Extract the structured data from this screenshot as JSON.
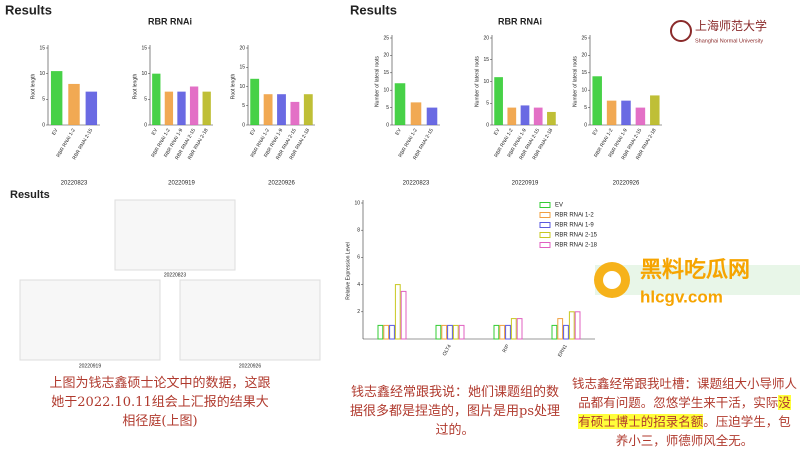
{
  "left_header": {
    "title": "Results",
    "subtitle": "RBR  RNAi"
  },
  "right_header": {
    "title": "Results",
    "subtitle": "RBR  RNAi"
  },
  "logo": {
    "name_cn": "上海师范大学",
    "name_en": "Shanghai Normal University"
  },
  "bottom_left": {
    "title": "Results",
    "dates": [
      "20220823",
      "20220919",
      "20220926"
    ]
  },
  "watermark": {
    "name": "黑料吃瓜网",
    "url": "hlcgv.com"
  },
  "captions": {
    "left": "上图为钱志鑫硕士论文中的数据，这跟她于2022.10.11组会上汇报的结果大相径庭(上图)",
    "middle": "钱志鑫经常跟我说：她们课题组的数据很多都是捏造的，图片是用ps处理过的。",
    "right_parts": [
      "钱志鑫经常跟我吐槽：课题组大小导师人品都有问题。忽悠学生来干活，实际",
      "没有硕士博士的招录名额",
      "。压迫学生，包养小三，师德师风全无。"
    ]
  },
  "chart_data": [
    {
      "type": "bar",
      "y_label": "Root  length",
      "x_title": "20220823",
      "categories": [
        "EV",
        "RBR  RNAi  1-2",
        "RBR  RNAi  2-15"
      ],
      "values": [
        10.5,
        8,
        6.5
      ],
      "colors": [
        "#33cc33",
        "#f0a040",
        "#5a5ae0"
      ],
      "ylim": [
        0,
        15
      ],
      "yticks": [
        0,
        5,
        10,
        15
      ]
    },
    {
      "type": "bar",
      "y_label": "Root  length",
      "x_title": "20220919",
      "categories": [
        "EV",
        "RBR  RNAi  1-2",
        "RBR  RNAi  1-9",
        "RBR  RNAi  2-15",
        "RBR  RNAi  2-18"
      ],
      "values": [
        10,
        6.5,
        6.5,
        7.5,
        6.5
      ],
      "colors": [
        "#33cc33",
        "#f0a040",
        "#5a5ae0",
        "#e060c0",
        "#b8b820"
      ],
      "ylim": [
        0,
        15
      ],
      "yticks": [
        0,
        5,
        10,
        15
      ]
    },
    {
      "type": "bar",
      "y_label": "Root  length",
      "x_title": "20220926",
      "categories": [
        "EV",
        "RBR  RNAi  1-2",
        "RBR  RNAi  1-9",
        "RBR  RNAi  2-15",
        "RBR  RNAi  2-18"
      ],
      "values": [
        12,
        8,
        8,
        6,
        8
      ],
      "colors": [
        "#33cc33",
        "#f0a040",
        "#5a5ae0",
        "#e060c0",
        "#b8b820"
      ],
      "ylim": [
        0,
        20
      ],
      "yticks": [
        0,
        5,
        10,
        15,
        20
      ]
    },
    {
      "type": "bar",
      "y_label": "Number of lateral roots",
      "x_title": "20220823",
      "categories": [
        "EV",
        "RBR  RNAi  1-2",
        "RBR  RNAi  2-15"
      ],
      "values": [
        12,
        6.5,
        5
      ],
      "colors": [
        "#33cc33",
        "#f0a040",
        "#5a5ae0"
      ],
      "ylim": [
        0,
        25
      ],
      "yticks": [
        0,
        5,
        10,
        15,
        20,
        25
      ]
    },
    {
      "type": "bar",
      "y_label": "Number of lateral roots",
      "x_title": "20220919",
      "categories": [
        "EV",
        "RBR  RNAi  1-2",
        "RBR  RNAi  1-9",
        "RBR  RNAi  2-15",
        "RBR  RNAi  2-18"
      ],
      "values": [
        11,
        4,
        4.5,
        4,
        3
      ],
      "colors": [
        "#33cc33",
        "#f0a040",
        "#5a5ae0",
        "#e060c0",
        "#b8b820"
      ],
      "ylim": [
        0,
        20
      ],
      "yticks": [
        0,
        5,
        10,
        15,
        20
      ]
    },
    {
      "type": "bar",
      "y_label": "Number of lateral roots",
      "x_title": "20220926",
      "categories": [
        "EV",
        "RBR  RNAi  1-2",
        "RBR  RNAi  1-9",
        "RBR  RNAi  2-15",
        "RBR  RNAi  2-18"
      ],
      "values": [
        14,
        7,
        7,
        5,
        8.5
      ],
      "colors": [
        "#33cc33",
        "#f0a040",
        "#5a5ae0",
        "#e060c0",
        "#b8b820"
      ],
      "ylim": [
        0,
        25
      ],
      "yticks": [
        0,
        5,
        10,
        15,
        20,
        25
      ]
    },
    {
      "type": "grouped_bar",
      "y_label": "Relative Expression Level",
      "categories": [
        null,
        "OLT4",
        "RIP",
        "ERN1"
      ],
      "ylim": [
        0,
        10
      ],
      "yticks": [
        2,
        4,
        6,
        8,
        10
      ],
      "series": [
        {
          "name": "EV",
          "color": "#33cc33",
          "values": [
            1,
            1,
            1,
            1
          ]
        },
        {
          "name": "RBR  RNAi  1-2",
          "color": "#f0a040",
          "values": [
            1,
            1,
            1,
            1.5
          ]
        },
        {
          "name": "RBR  RNAi  1-9",
          "color": "#5a5ae0",
          "values": [
            1,
            1,
            1,
            1
          ]
        },
        {
          "name": "RBR  RNAi  2-15",
          "color": "#c8c820",
          "values": [
            4,
            1,
            1.5,
            2
          ]
        },
        {
          "name": "RBR  RNAi  2-18",
          "color": "#e060c0",
          "values": [
            3.5,
            1,
            1.5,
            2
          ]
        }
      ]
    }
  ]
}
